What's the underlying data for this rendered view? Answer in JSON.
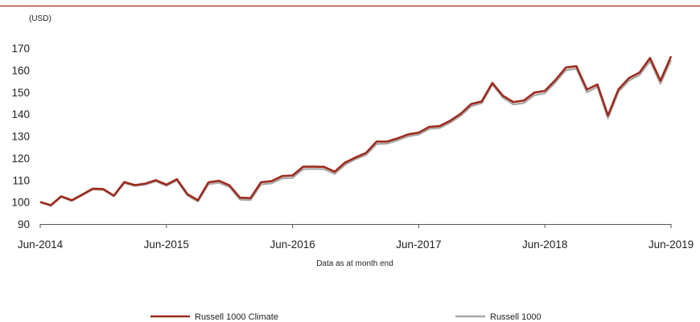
{
  "chart_data": {
    "type": "line",
    "unit_label": "(USD)",
    "xlabel": "Data as at month end",
    "ylabel": "",
    "ylim": [
      90,
      170
    ],
    "yticks": [
      90,
      100,
      110,
      120,
      130,
      140,
      150,
      160,
      170
    ],
    "xticks": [
      "Jun-2014",
      "Jun-2015",
      "Jun-2016",
      "Jun-2017",
      "Jun-2018",
      "Jun-2019"
    ],
    "x_range": [
      "Jun-2014",
      "Jun-2019"
    ],
    "grid": false,
    "legend_position": "bottom",
    "series": [
      {
        "name": "Russell 1000 Climate",
        "color": "#9e2a1c",
        "values": [
          100.0,
          98.6,
          102.6,
          100.8,
          103.4,
          106.1,
          105.9,
          102.9,
          109.1,
          107.7,
          108.4,
          110.0,
          107.9,
          110.4,
          103.6,
          100.8,
          109.0,
          109.7,
          107.6,
          102.0,
          101.8,
          109.0,
          109.5,
          111.8,
          112.1,
          116.1,
          116.1,
          116.0,
          113.8,
          118.0,
          120.3,
          122.4,
          127.5,
          127.5,
          129.0,
          130.8,
          131.6,
          134.2,
          134.6,
          137.0,
          140.2,
          144.6,
          145.8,
          154.2,
          148.4,
          145.5,
          146.2,
          149.8,
          150.6,
          155.5,
          161.2,
          161.8,
          151.2,
          153.5,
          139.4,
          151.3,
          156.4,
          158.9,
          165.5,
          155.2,
          166.3
        ]
      },
      {
        "name": "Russell 1000",
        "color": "#a6a6a6",
        "values": [
          100.0,
          98.2,
          102.3,
          100.5,
          103.1,
          105.7,
          105.5,
          102.6,
          108.6,
          107.3,
          107.9,
          109.4,
          107.4,
          109.8,
          103.0,
          100.2,
          108.1,
          108.8,
          106.8,
          101.1,
          100.9,
          108.0,
          108.5,
          110.8,
          111.0,
          115.0,
          115.1,
          115.0,
          112.8,
          117.0,
          119.5,
          121.5,
          126.4,
          126.6,
          128.1,
          129.9,
          130.7,
          133.3,
          133.7,
          136.1,
          139.3,
          143.6,
          145.0,
          153.5,
          147.5,
          144.4,
          145.0,
          148.6,
          149.5,
          154.4,
          160.0,
          160.7,
          149.9,
          152.4,
          138.1,
          150.2,
          155.2,
          157.8,
          164.1,
          153.8,
          164.6
        ]
      }
    ]
  }
}
